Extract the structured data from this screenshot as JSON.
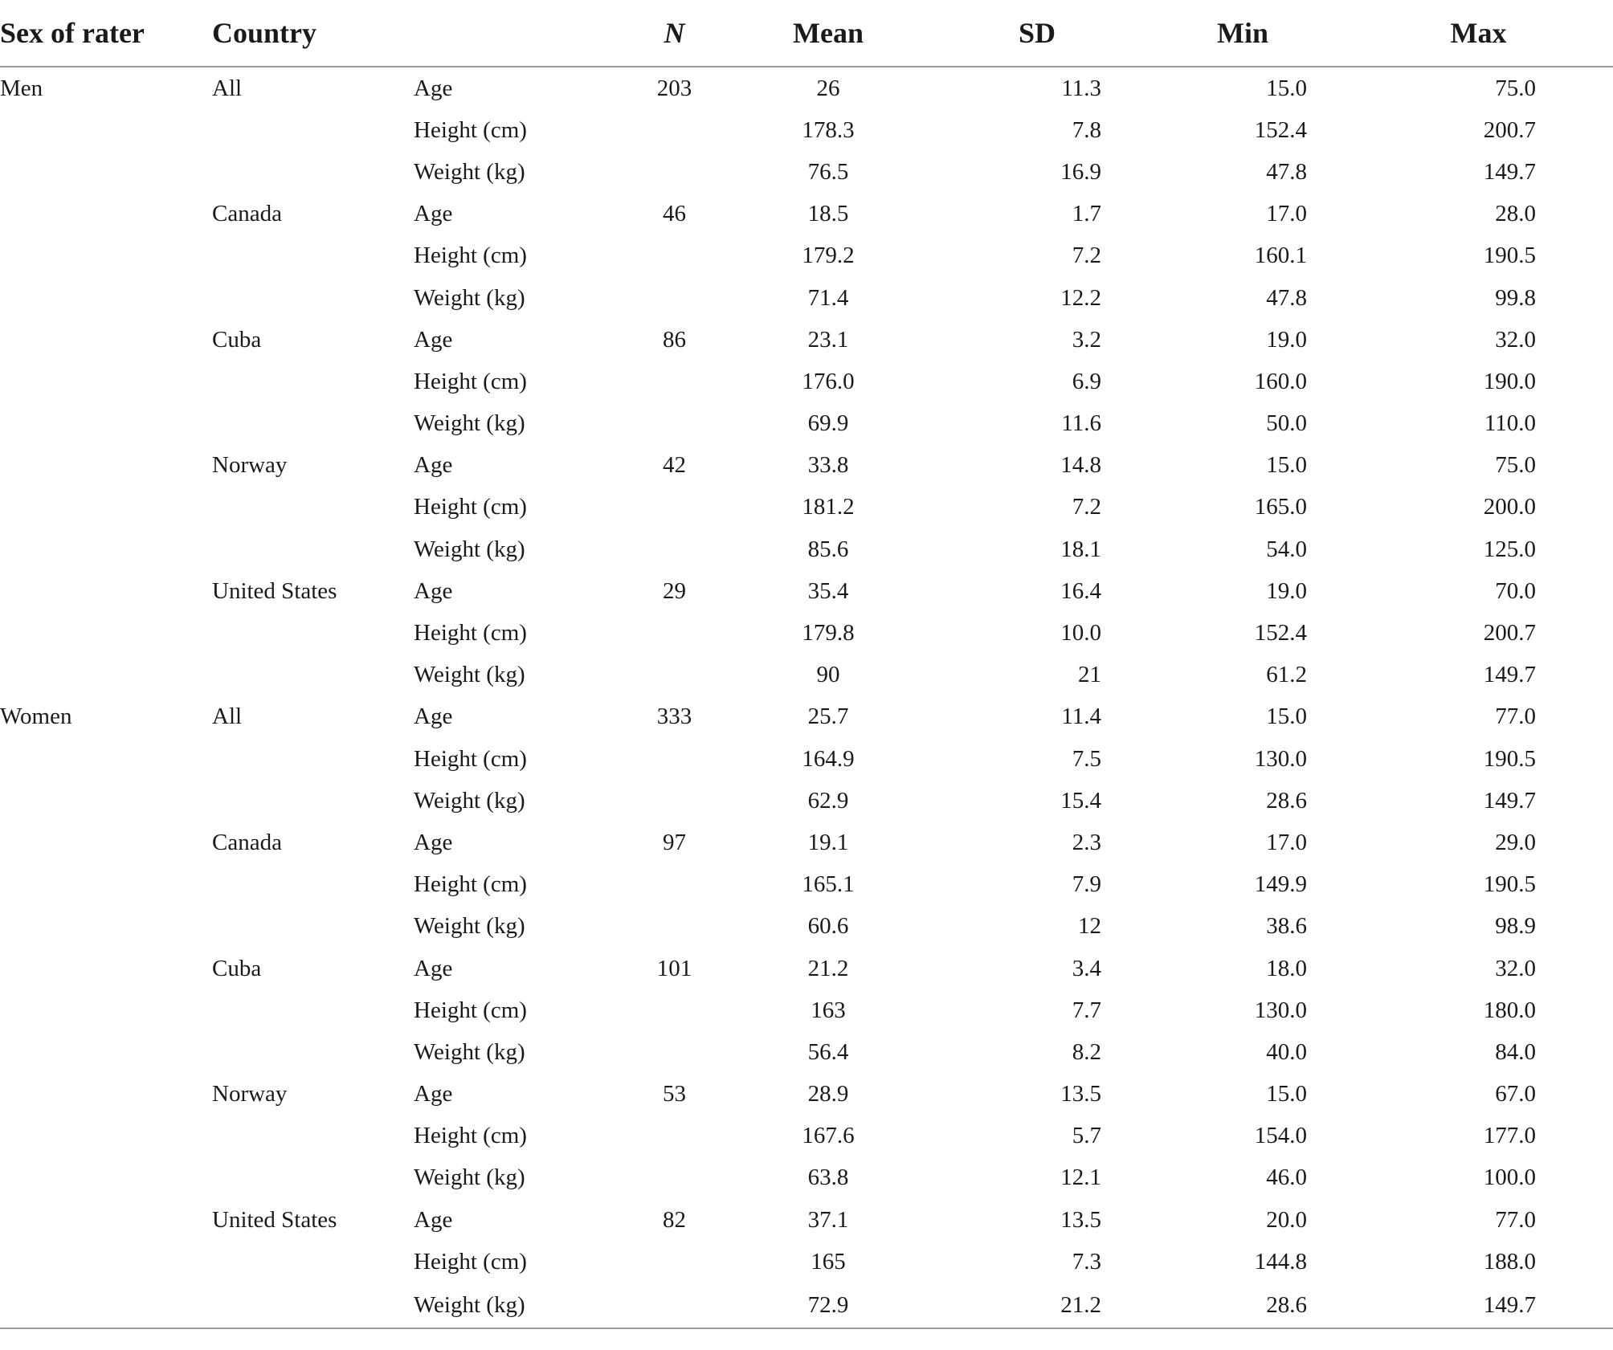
{
  "table": {
    "headers": {
      "sex": "Sex of rater",
      "country": "Country",
      "measure": "",
      "n": "N",
      "mean": "Mean",
      "sd": "SD",
      "min": "Min",
      "max": "Max"
    },
    "rows": [
      {
        "sex": "Men",
        "country": "All",
        "measure": "Age",
        "n": "203",
        "mean": "26",
        "sd": "11.3",
        "min": "15.0",
        "max": "75.0"
      },
      {
        "sex": "",
        "country": "",
        "measure": "Height (cm)",
        "n": "",
        "mean": "178.3",
        "sd": "7.8",
        "min": "152.4",
        "max": "200.7"
      },
      {
        "sex": "",
        "country": "",
        "measure": "Weight (kg)",
        "n": "",
        "mean": "76.5",
        "sd": "16.9",
        "min": "47.8",
        "max": "149.7"
      },
      {
        "sex": "",
        "country": "Canada",
        "measure": "Age",
        "n": "46",
        "mean": "18.5",
        "sd": "1.7",
        "min": "17.0",
        "max": "28.0"
      },
      {
        "sex": "",
        "country": "",
        "measure": "Height (cm)",
        "n": "",
        "mean": "179.2",
        "sd": "7.2",
        "min": "160.1",
        "max": "190.5"
      },
      {
        "sex": "",
        "country": "",
        "measure": "Weight (kg)",
        "n": "",
        "mean": "71.4",
        "sd": "12.2",
        "min": "47.8",
        "max": "99.8"
      },
      {
        "sex": "",
        "country": "Cuba",
        "measure": "Age",
        "n": "86",
        "mean": "23.1",
        "sd": "3.2",
        "min": "19.0",
        "max": "32.0"
      },
      {
        "sex": "",
        "country": "",
        "measure": "Height (cm)",
        "n": "",
        "mean": "176.0",
        "sd": "6.9",
        "min": "160.0",
        "max": "190.0"
      },
      {
        "sex": "",
        "country": "",
        "measure": "Weight (kg)",
        "n": "",
        "mean": "69.9",
        "sd": "11.6",
        "min": "50.0",
        "max": "110.0"
      },
      {
        "sex": "",
        "country": "Norway",
        "measure": "Age",
        "n": "42",
        "mean": "33.8",
        "sd": "14.8",
        "min": "15.0",
        "max": "75.0"
      },
      {
        "sex": "",
        "country": "",
        "measure": "Height (cm)",
        "n": "",
        "mean": "181.2",
        "sd": "7.2",
        "min": "165.0",
        "max": "200.0"
      },
      {
        "sex": "",
        "country": "",
        "measure": "Weight (kg)",
        "n": "",
        "mean": "85.6",
        "sd": "18.1",
        "min": "54.0",
        "max": "125.0"
      },
      {
        "sex": "",
        "country": "United States",
        "measure": "Age",
        "n": "29",
        "mean": "35.4",
        "sd": "16.4",
        "min": "19.0",
        "max": "70.0"
      },
      {
        "sex": "",
        "country": "",
        "measure": "Height (cm)",
        "n": "",
        "mean": "179.8",
        "sd": "10.0",
        "min": "152.4",
        "max": "200.7"
      },
      {
        "sex": "",
        "country": "",
        "measure": "Weight (kg)",
        "n": "",
        "mean": "90",
        "sd": "21",
        "min": "61.2",
        "max": "149.7"
      },
      {
        "sex": "Women",
        "country": "All",
        "measure": "Age",
        "n": "333",
        "mean": "25.7",
        "sd": "11.4",
        "min": "15.0",
        "max": "77.0"
      },
      {
        "sex": "",
        "country": "",
        "measure": "Height (cm)",
        "n": "",
        "mean": "164.9",
        "sd": "7.5",
        "min": "130.0",
        "max": "190.5"
      },
      {
        "sex": "",
        "country": "",
        "measure": "Weight (kg)",
        "n": "",
        "mean": "62.9",
        "sd": "15.4",
        "min": "28.6",
        "max": "149.7"
      },
      {
        "sex": "",
        "country": "Canada",
        "measure": "Age",
        "n": "97",
        "mean": "19.1",
        "sd": "2.3",
        "min": "17.0",
        "max": "29.0"
      },
      {
        "sex": "",
        "country": "",
        "measure": "Height (cm)",
        "n": "",
        "mean": "165.1",
        "sd": "7.9",
        "min": "149.9",
        "max": "190.5"
      },
      {
        "sex": "",
        "country": "",
        "measure": "Weight (kg)",
        "n": "",
        "mean": "60.6",
        "sd": "12",
        "min": "38.6",
        "max": "98.9"
      },
      {
        "sex": "",
        "country": "Cuba",
        "measure": "Age",
        "n": "101",
        "mean": "21.2",
        "sd": "3.4",
        "min": "18.0",
        "max": "32.0"
      },
      {
        "sex": "",
        "country": "",
        "measure": "Height (cm)",
        "n": "",
        "mean": "163",
        "sd": "7.7",
        "min": "130.0",
        "max": "180.0"
      },
      {
        "sex": "",
        "country": "",
        "measure": "Weight (kg)",
        "n": "",
        "mean": "56.4",
        "sd": "8.2",
        "min": "40.0",
        "max": "84.0"
      },
      {
        "sex": "",
        "country": "Norway",
        "measure": "Age",
        "n": "53",
        "mean": "28.9",
        "sd": "13.5",
        "min": "15.0",
        "max": "67.0"
      },
      {
        "sex": "",
        "country": "",
        "measure": "Height (cm)",
        "n": "",
        "mean": "167.6",
        "sd": "5.7",
        "min": "154.0",
        "max": "177.0"
      },
      {
        "sex": "",
        "country": "",
        "measure": "Weight (kg)",
        "n": "",
        "mean": "63.8",
        "sd": "12.1",
        "min": "46.0",
        "max": "100.0"
      },
      {
        "sex": "",
        "country": "United States",
        "measure": "Age",
        "n": "82",
        "mean": "37.1",
        "sd": "13.5",
        "min": "20.0",
        "max": "77.0"
      },
      {
        "sex": "",
        "country": "",
        "measure": "Height (cm)",
        "n": "",
        "mean": "165",
        "sd": "7.3",
        "min": "144.8",
        "max": "188.0"
      },
      {
        "sex": "",
        "country": "",
        "measure": "Weight (kg)",
        "n": "",
        "mean": "72.9",
        "sd": "21.2",
        "min": "28.6",
        "max": "149.7"
      }
    ]
  }
}
